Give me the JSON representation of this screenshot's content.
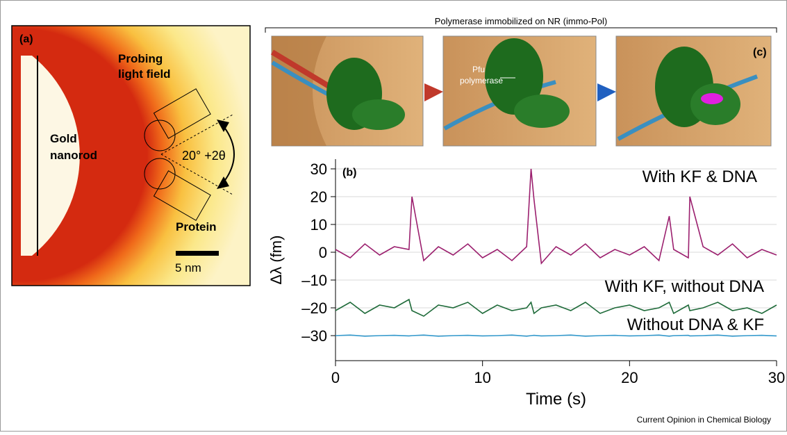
{
  "panel_a": {
    "label": "(a)",
    "field_label": [
      "Probing",
      "light field"
    ],
    "rod_label": [
      "Gold",
      "nanorod"
    ],
    "angle_label": "20° +2θ",
    "protein_label": "Protein",
    "scale_label": "5 nm"
  },
  "panel_c": {
    "bracket_label": "Polymerase immobilized on NR (immo-Pol)",
    "label": "(c)",
    "enzyme_label": [
      "Pfu",
      "polymerase"
    ]
  },
  "credit": "Current Opinion in Chemical Biology",
  "chart_data": {
    "type": "line",
    "title": "(b)",
    "x_label": "Time (s)",
    "y_label": "Δλ (fm)",
    "x": [
      0,
      1,
      2,
      3,
      4,
      5,
      5.2,
      6,
      7,
      8,
      9,
      10,
      11,
      12,
      13,
      13.3,
      13.5,
      14,
      15,
      16,
      17,
      18,
      19,
      20,
      21,
      22,
      22.7,
      23,
      24,
      24.1,
      25,
      26,
      27,
      28,
      29,
      30
    ],
    "series": [
      {
        "name": "With KF & DNA",
        "color": "#9b1f6e",
        "values": [
          1,
          -2,
          3,
          -1,
          2,
          1,
          20,
          -3,
          2,
          -1,
          3,
          -2,
          1,
          -3,
          2,
          30,
          19,
          -4,
          2,
          -1,
          3,
          -2,
          1,
          -1,
          2,
          -3,
          13,
          1,
          -2,
          20,
          2,
          -1,
          3,
          -2,
          1,
          -1
        ]
      },
      {
        "name": "With KF, without DNA",
        "color": "#1f6b3a",
        "values": [
          -21,
          -18,
          -22,
          -19,
          -20,
          -17,
          -21,
          -23,
          -19,
          -20,
          -18,
          -22,
          -19,
          -21,
          -20,
          -18,
          -22,
          -20,
          -19,
          -21,
          -18,
          -22,
          -20,
          -19,
          -21,
          -20,
          -18,
          -22,
          -19,
          -21,
          -20,
          -18,
          -21,
          -20,
          -22,
          -19
        ]
      },
      {
        "name": "Without DNA & KF",
        "color": "#3399cc",
        "values": [
          -30,
          -29.8,
          -30.2,
          -30,
          -29.9,
          -30.1,
          -30,
          -29.8,
          -30.2,
          -30,
          -29.9,
          -30.1,
          -30,
          -29.8,
          -30.2,
          -30,
          -29.9,
          -30.1,
          -30,
          -29.8,
          -30.2,
          -30,
          -29.9,
          -30.1,
          -30,
          -29.8,
          -30.2,
          -30,
          -29.9,
          -30.1,
          -30,
          -29.8,
          -30.2,
          -30,
          -29.9,
          -30.1
        ]
      }
    ],
    "xlim": [
      0,
      30
    ],
    "xticks": [
      0,
      10,
      20,
      30
    ],
    "ylim": [
      -39,
      33.5
    ],
    "yticks": [
      30,
      20,
      10,
      0,
      {
        "value": -10,
        "label": "–10"
      },
      {
        "value": -20,
        "label": "–20"
      },
      {
        "value": -30,
        "label": "–30"
      }
    ],
    "grid": true
  }
}
